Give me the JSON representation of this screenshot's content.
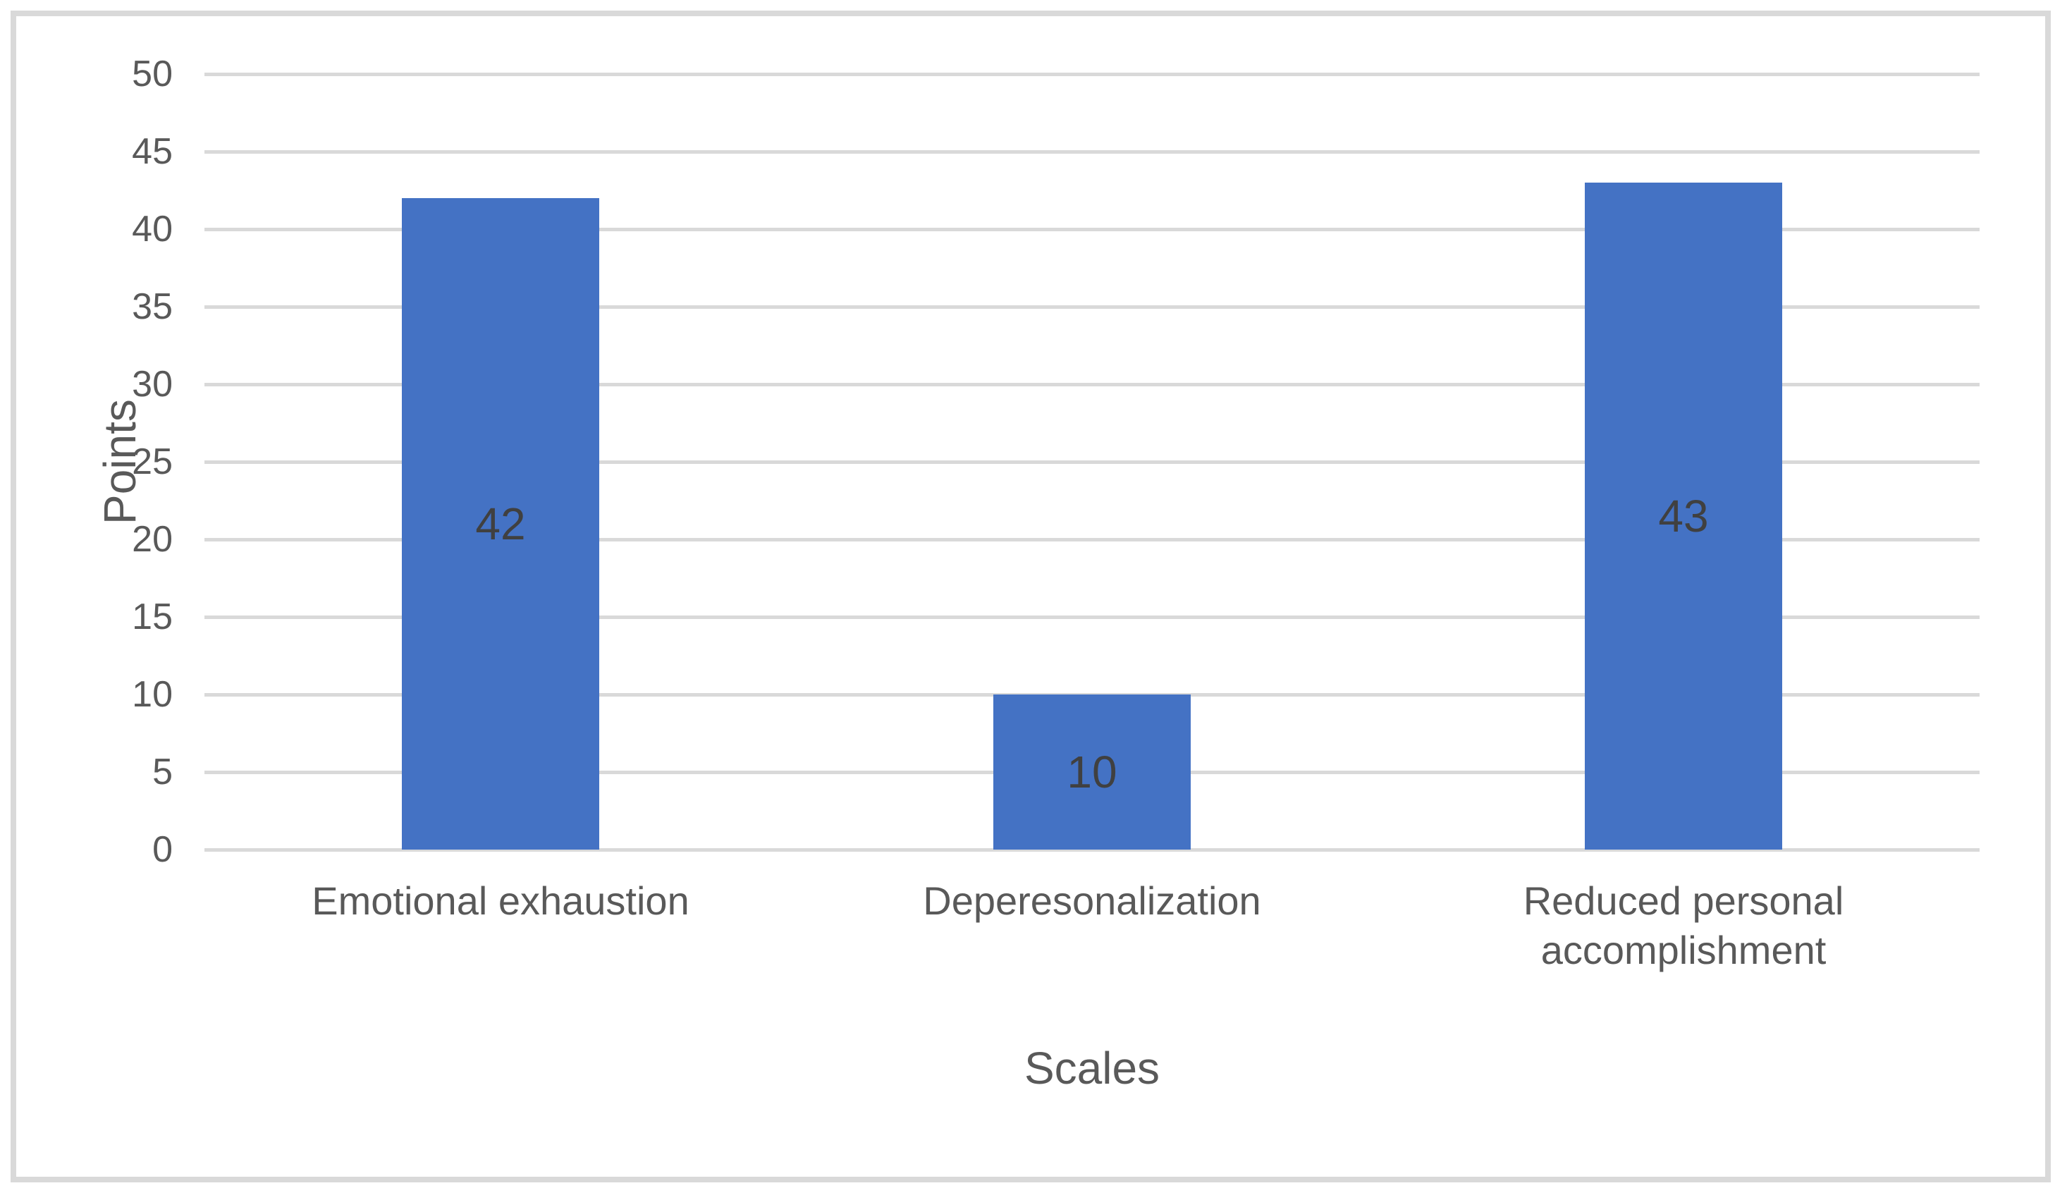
{
  "chart_data": {
    "type": "bar",
    "title": "",
    "categories": [
      "Emotional exhaustion",
      "Deperesonalization",
      "Reduced personal accomplishment"
    ],
    "values": [
      42,
      10,
      43
    ],
    "data_labels": [
      "42",
      "10",
      "43"
    ],
    "data_label_position": "center",
    "xlabel": "Scales",
    "ylabel": "Points",
    "ylim": [
      0,
      50
    ],
    "ytick_step": 5,
    "ytick_labels": [
      "0",
      "5",
      "10",
      "15",
      "20",
      "25",
      "30",
      "35",
      "40",
      "45",
      "50"
    ],
    "grid": true,
    "legend_position": "none",
    "colors": {
      "bar": "#4472C4",
      "gridline": "#D9D9D9",
      "frame_border": "#D9D9D9",
      "axis_text": "#595959",
      "data_label": "#404040"
    }
  }
}
